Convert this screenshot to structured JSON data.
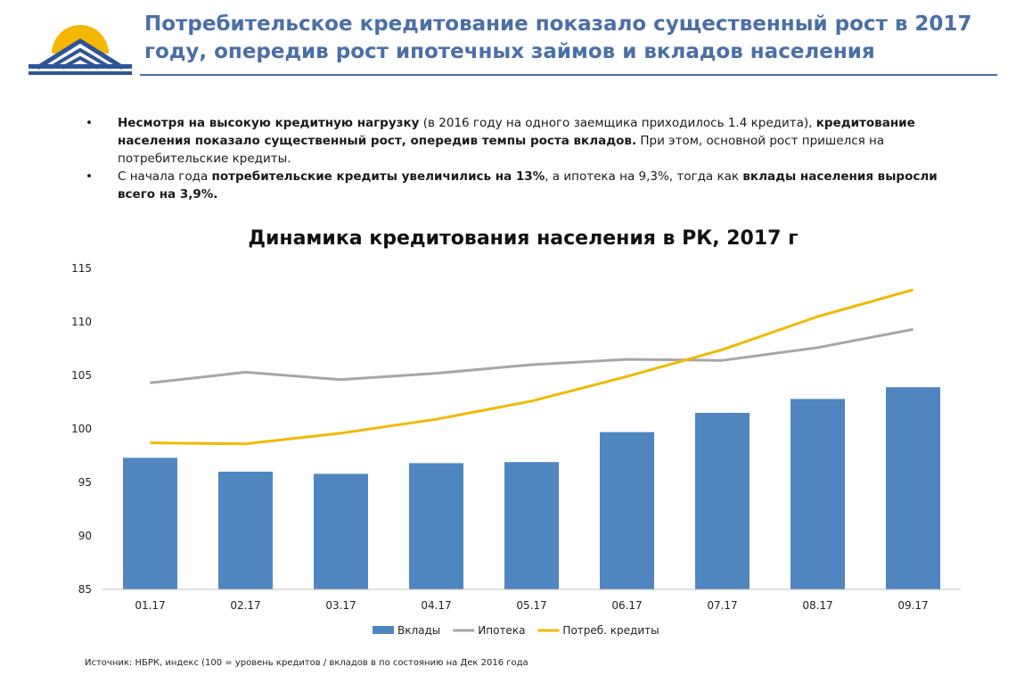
{
  "header": {
    "title": "Потребительское кредитование показало существенный рост в 2017 году, опередив рост ипотечных займов и вкладов населения"
  },
  "bullets": [
    {
      "bold_1": "Несмотря на высокую кредитную нагрузку",
      "text_1": " (в 2016 году на одного заемщика приходилось 1.4 кредита),",
      "bold_2": "кредитование населения показало существенный рост, опередив темпы роста вкладов.",
      "text_2": " При этом, основной рост пришелся на потребительские кредиты."
    },
    {
      "text_1": "С начала года ",
      "bold_1": "потребительские кредиты увеличились на 13%",
      "text_2": ", а ипотека на 9,3%, тогда как ",
      "bold_2": "вклады населения выросли всего на 3,9%."
    }
  ],
  "source": "Источник: НБРК, индекс (100 = уровень кредитов / вкладов в по состоянию на Дек 2016 года",
  "colors": {
    "title": "#4a6fa5",
    "bar": "#4f86c0",
    "mortgage": "#a6a6a6",
    "consumer": "#f2b800"
  },
  "chart_data": {
    "type": "bar",
    "title": "Динамика кредитования населения в РК, 2017 г",
    "categories": [
      "01.17",
      "02.17",
      "03.17",
      "04.17",
      "05.17",
      "06.17",
      "07.17",
      "08.17",
      "09.17"
    ],
    "ylim": [
      85,
      115
    ],
    "yticks": [
      85,
      90,
      95,
      100,
      105,
      110,
      115
    ],
    "grid": false,
    "legend_position": "bottom",
    "series": [
      {
        "name": "Вклады",
        "kind": "bar",
        "values": [
          97.3,
          96.0,
          95.8,
          96.8,
          96.9,
          99.7,
          101.5,
          102.8,
          103.9
        ]
      },
      {
        "name": "Ипотека",
        "kind": "line",
        "values": [
          104.3,
          105.3,
          104.6,
          105.2,
          106.0,
          106.5,
          106.4,
          107.6,
          109.3
        ]
      },
      {
        "name": "Потреб. кредиты",
        "kind": "line",
        "values": [
          98.7,
          98.6,
          99.6,
          100.9,
          102.6,
          104.9,
          107.4,
          110.5,
          113.0
        ]
      }
    ]
  }
}
